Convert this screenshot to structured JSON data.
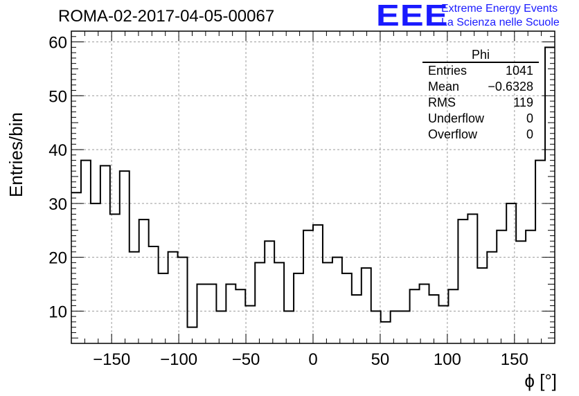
{
  "header": {
    "title": "ROMA-02-2017-04-05-00067",
    "logo_text": "EEE",
    "logo_line1": "Extreme Energy Events",
    "logo_line2": "La Scienza nelle Scuole"
  },
  "stats_box": {
    "title": "Phi",
    "rows": [
      {
        "label": "Entries",
        "value": "1041"
      },
      {
        "label": "Mean",
        "value": "−0.6328"
      },
      {
        "label": "RMS",
        "value": "119"
      },
      {
        "label": "Underflow",
        "value": "0"
      },
      {
        "label": "Overflow",
        "value": "0"
      }
    ]
  },
  "chart_data": {
    "type": "bar",
    "histogram": true,
    "xlabel": "ϕ [°]",
    "ylabel": "Entries/bin",
    "xlim": [
      -180,
      180
    ],
    "ylim": [
      4,
      62
    ],
    "bin_width": 7.2,
    "grid": true,
    "x_ticks": [
      -150,
      -100,
      -50,
      0,
      50,
      100,
      150
    ],
    "x_tick_labels": [
      "−150",
      "−100",
      "−50",
      "0",
      "50",
      "100",
      "150"
    ],
    "y_ticks": [
      10,
      20,
      30,
      40,
      50,
      60
    ],
    "y_tick_labels": [
      "10",
      "20",
      "30",
      "40",
      "50",
      "60"
    ],
    "values": [
      32,
      38,
      30,
      37,
      28,
      36,
      21,
      27,
      22,
      17,
      21,
      20,
      7,
      15,
      15,
      10,
      15,
      14,
      11,
      19,
      23,
      19,
      10,
      17,
      25,
      26,
      19,
      20,
      17,
      13,
      18,
      10,
      8,
      10,
      10,
      14,
      15,
      13,
      11,
      14,
      27,
      28,
      18,
      21,
      25,
      30,
      23,
      25,
      38,
      59
    ],
    "line_color": "#000000"
  }
}
